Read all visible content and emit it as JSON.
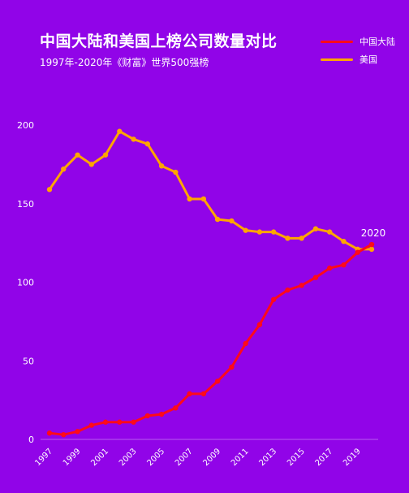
{
  "colors": {
    "background": "#9104e8",
    "china": "#ff0a1a",
    "usa": "#ffa500"
  },
  "chart_data": {
    "type": "line",
    "title": "中国大陆和美国上榜公司数量对比",
    "subtitle": "1997年-2020年《财富》世界500强榜",
    "x": [
      1997,
      1998,
      1999,
      2000,
      2001,
      2002,
      2003,
      2004,
      2005,
      2006,
      2007,
      2008,
      2009,
      2010,
      2011,
      2012,
      2013,
      2014,
      2015,
      2016,
      2017,
      2018,
      2019,
      2020
    ],
    "x_tick_labels": [
      "1997",
      "1999",
      "2001",
      "2003",
      "2005",
      "2007",
      "2009",
      "2011",
      "2013",
      "2015",
      "2017",
      "2019"
    ],
    "y_tick_labels": [
      "0",
      "50",
      "100",
      "150",
      "200"
    ],
    "ylim": [
      0,
      200
    ],
    "grid": false,
    "legend_position": "top-right",
    "annotation": "2020",
    "series": [
      {
        "name": "中国大陆",
        "color": "#ff0a1a",
        "values": [
          4,
          3,
          5,
          9,
          11,
          11,
          11,
          15,
          16,
          20,
          29,
          29,
          37,
          46,
          61,
          73,
          89,
          95,
          98,
          103,
          109,
          111,
          119,
          124
        ]
      },
      {
        "name": "美国",
        "color": "#ffa500",
        "values": [
          159,
          172,
          181,
          175,
          181,
          196,
          191,
          188,
          174,
          170,
          153,
          153,
          140,
          139,
          133,
          132,
          132,
          128,
          128,
          134,
          132,
          126,
          121,
          121
        ]
      }
    ]
  }
}
